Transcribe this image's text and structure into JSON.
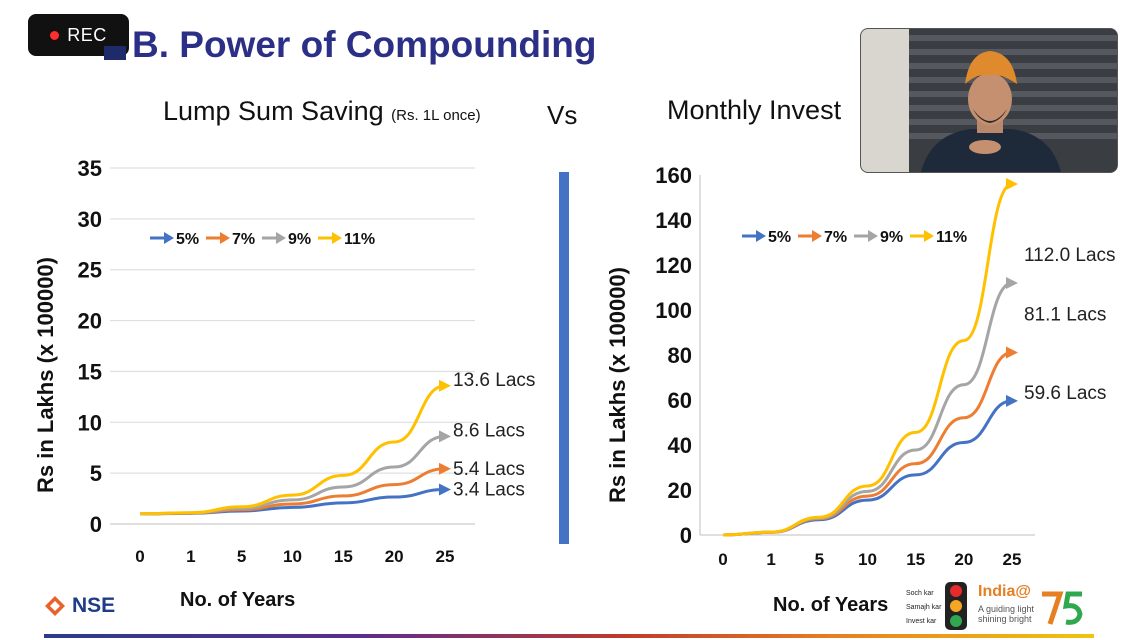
{
  "recording": {
    "label": "REC"
  },
  "slide": {
    "title": "B. Power of Compounding",
    "subtitle_left": "Lump Sum Saving",
    "subtitle_left_note": "(Rs. 1L once)",
    "subtitle_vs": "Vs",
    "subtitle_right": "Monthly Invest"
  },
  "footer": {
    "nse": "NSE",
    "india_title": "India@",
    "india_tagline": "A guiding light shining bright",
    "soch": [
      "Soch kar",
      "Samajh kar",
      "Invest kar"
    ]
  },
  "colors": {
    "s5": "#4472c4",
    "s7": "#ed7d31",
    "s9": "#a5a5a5",
    "s11": "#ffc000",
    "divider": "#4472c4",
    "title": "#2b2f86"
  },
  "chart_data": [
    {
      "type": "line",
      "xlabel": "No. of Years",
      "ylabel": "Rs in Lakhs (x 100000)",
      "categories": [
        "0",
        "1",
        "5",
        "10",
        "15",
        "20",
        "25"
      ],
      "ylim": [
        0,
        35
      ],
      "yticks": [
        0,
        5,
        10,
        15,
        20,
        25,
        30,
        35
      ],
      "grid": true,
      "legend": "top-left",
      "series": [
        {
          "name": "5%",
          "values": [
            1.0,
            1.05,
            1.28,
            1.63,
            2.08,
            2.65,
            3.39
          ]
        },
        {
          "name": "7%",
          "values": [
            1.0,
            1.07,
            1.4,
            1.97,
            2.76,
            3.87,
            5.43
          ]
        },
        {
          "name": "9%",
          "values": [
            1.0,
            1.09,
            1.54,
            2.37,
            3.64,
            5.6,
            8.62
          ]
        },
        {
          "name": "11%",
          "values": [
            1.0,
            1.11,
            1.69,
            2.84,
            4.78,
            8.06,
            13.59
          ]
        }
      ],
      "end_labels": [
        "3.4 Lacs",
        "5.4 Lacs",
        "8.6 Lacs",
        "13.6 Lacs"
      ]
    },
    {
      "type": "line",
      "xlabel": "No. of Years",
      "ylabel": "Rs in Lakhs (x 100000)",
      "categories": [
        "0",
        "1",
        "5",
        "10",
        "15",
        "20",
        "25"
      ],
      "ylim": [
        0,
        160
      ],
      "yticks": [
        0,
        20,
        40,
        60,
        80,
        100,
        120,
        140,
        160
      ],
      "grid": false,
      "legend": "top-left",
      "series": [
        {
          "name": "5%",
          "values": [
            0,
            1.2,
            6.8,
            15.5,
            26.7,
            41.1,
            59.6
          ]
        },
        {
          "name": "7%",
          "values": [
            0,
            1.2,
            7.2,
            17.3,
            31.7,
            52.1,
            81.1
          ]
        },
        {
          "name": "9%",
          "values": [
            0,
            1.3,
            7.5,
            19.4,
            37.8,
            66.8,
            112.0
          ]
        },
        {
          "name": "11%",
          "values": [
            0,
            1.3,
            7.9,
            21.8,
            45.6,
            86.4,
            156.0
          ]
        }
      ],
      "end_labels": [
        "59.6 Lacs",
        "81.1 Lacs",
        "112.0 Lacs",
        ""
      ]
    }
  ]
}
